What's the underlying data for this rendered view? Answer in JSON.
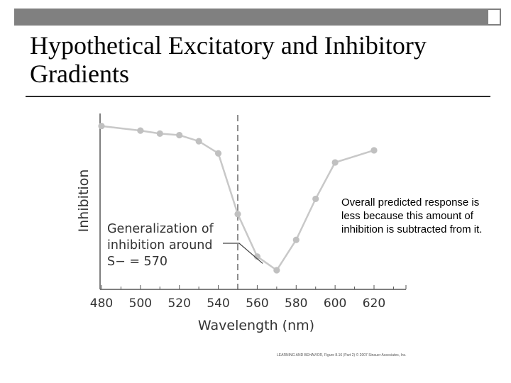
{
  "slide": {
    "title": "Hypothetical Excitatory and Inhibitory Gradients",
    "callout": "Overall predicted response is less because this amount of inhibition is subtracted from it.",
    "credit": "LEARNING AND BEHAVIOR, Figure 8.16 (Part 2) © 2007 Sinauer Associates, Inc."
  },
  "chart_data": {
    "type": "line",
    "xlabel": "Wavelength (nm)",
    "ylabel": "Inhibition",
    "xlim": [
      480,
      620
    ],
    "x_ticks": [
      480,
      500,
      520,
      540,
      560,
      580,
      600,
      620
    ],
    "grid": false,
    "reference_line": {
      "x": 550,
      "style": "dashed"
    },
    "annotation": {
      "lines": [
        "Generalization of",
        "inhibition around",
        "S− = 570"
      ],
      "points_to_x": 565
    },
    "series": [
      {
        "x": [
          480,
          500,
          510,
          520,
          530,
          540,
          550,
          560,
          570,
          580,
          590,
          600,
          620
        ],
        "y": [
          0.95,
          0.92,
          0.9,
          0.89,
          0.85,
          0.77,
          0.37,
          0.09,
          0.0,
          0.2,
          0.47,
          0.71,
          0.79
        ]
      }
    ],
    "colors": {
      "line": "#c8c8c8",
      "marker": "#c0c0c0",
      "axis": "#555555",
      "dash": "#444444"
    }
  }
}
